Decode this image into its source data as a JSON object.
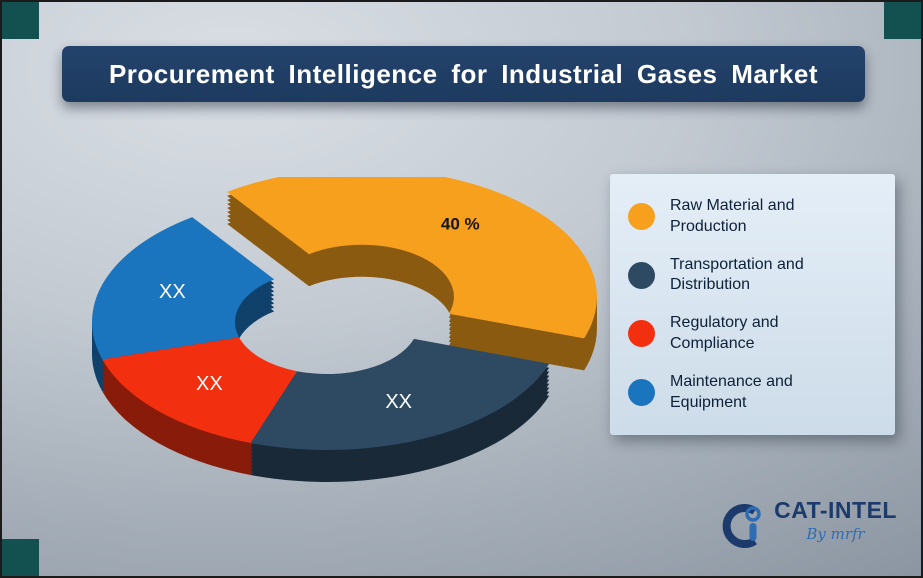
{
  "title": {
    "text": "Procurement Intelligence for Industrial Gases Market"
  },
  "chart_data": {
    "type": "pie",
    "subtype": "3d-donut-exploded",
    "title": "Procurement Intelligence for Industrial Gases Market",
    "legend_position": "right",
    "start_angle_deg": -35,
    "unit": "%",
    "segments": [
      {
        "name": "Raw Material and Production",
        "value": 40,
        "display_label": "40 %",
        "label_color": "#151515",
        "color": "#F7A01E",
        "exploded": true
      },
      {
        "name": "Transportation and Distribution",
        "value": 25,
        "display_label": "XX",
        "label_color": "#ffffff",
        "color": "#2E4A63",
        "exploded": false
      },
      {
        "name": "Regulatory and Compliance",
        "value": 15,
        "display_label": "XX",
        "label_color": "#ffffff",
        "color": "#F23010",
        "exploded": false
      },
      {
        "name": "Maintenance and Equipment",
        "value": 20,
        "display_label": "XX",
        "label_color": "#ffffff",
        "color": "#1B74BE",
        "exploded": false
      }
    ]
  },
  "logo": {
    "brand": "CAT-INTEL",
    "byline": "By mrfr"
  },
  "colors": {
    "banner_bg": "#1F3C63",
    "corner_accent": "#135150",
    "legend_bg": "#DCE8F3",
    "background_light": "#D9DEE4",
    "background_dark": "#8A94A0"
  }
}
